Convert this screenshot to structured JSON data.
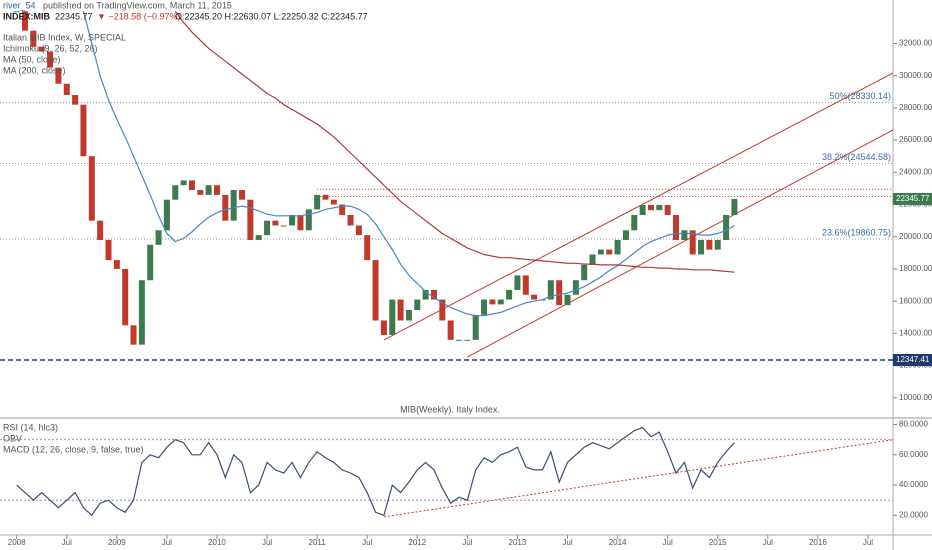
{
  "chart_data": [
    {
      "type": "candlestick",
      "header": {
        "publisher": "river_54",
        "published": "published on TradingView.com, March 11, 2015",
        "symbol": "INDEX:MIB",
        "quote": "22345.77",
        "change": "▼ −218.58 (−0.97%)",
        "ohlc": "O:22345.20 H:22630.07 L:22250.32 C:22345.77"
      },
      "indicators": [
        "Ichimoku (9, 26, 52, 26)"
      ],
      "caption": "MIB(Weekly). Italy Index.",
      "x": [
        "2008-01",
        "2008-02",
        "2008-03",
        "2008-04",
        "2008-05",
        "2008-06",
        "2008-07",
        "2008-08",
        "2008-09",
        "2008-10",
        "2008-11",
        "2008-12",
        "2009-01",
        "2009-02",
        "2009-03",
        "2009-04",
        "2009-05",
        "2009-06",
        "2009-07",
        "2009-08",
        "2009-09",
        "2009-10",
        "2009-11",
        "2009-12",
        "2010-01",
        "2010-02",
        "2010-03",
        "2010-04",
        "2010-05",
        "2010-06",
        "2010-07",
        "2010-08",
        "2010-09",
        "2010-10",
        "2010-11",
        "2010-12",
        "2011-01",
        "2011-02",
        "2011-03",
        "2011-04",
        "2011-05",
        "2011-06",
        "2011-07",
        "2011-08",
        "2011-09",
        "2011-10",
        "2011-11",
        "2011-12",
        "2012-01",
        "2012-02",
        "2012-03",
        "2012-04",
        "2012-05",
        "2012-06",
        "2012-07",
        "2012-08",
        "2012-09",
        "2012-10",
        "2012-11",
        "2012-12",
        "2013-01",
        "2013-02",
        "2013-03",
        "2013-04",
        "2013-05",
        "2013-06",
        "2013-07",
        "2013-08",
        "2013-09",
        "2013-10",
        "2013-11",
        "2013-12",
        "2014-01",
        "2014-02",
        "2014-03",
        "2014-04",
        "2014-05",
        "2014-06",
        "2014-07",
        "2014-08",
        "2014-09",
        "2014-10",
        "2014-11",
        "2014-12",
        "2015-01",
        "2015-02",
        "2015-03"
      ],
      "series": [
        {
          "name": "Italian MIB Index, W, SPECIAL",
          "color": "#3d7a4f",
          "down_color": "#c0392b",
          "values": [
            34000,
            32800,
            31800,
            31500,
            30500,
            29500,
            28800,
            28200,
            25000,
            21000,
            19800,
            18550,
            18000,
            14500,
            13300,
            17300,
            19500,
            20400,
            22300,
            23200,
            23500,
            22900,
            22600,
            23200,
            22600,
            21000,
            22900,
            22300,
            19800,
            20100,
            21000,
            20700,
            20700,
            21350,
            20400,
            21700,
            22600,
            22300,
            22000,
            21350,
            20700,
            20100,
            18550,
            14800,
            13900,
            16100,
            14800,
            15450,
            16100,
            16700,
            16100,
            14800,
            13600,
            13600,
            13600,
            15150,
            16100,
            15800,
            16100,
            16700,
            17600,
            16400,
            16100,
            16100,
            17300,
            15750,
            16400,
            17300,
            18250,
            18900,
            19200,
            18900,
            19800,
            20400,
            21350,
            21970,
            21650,
            21970,
            21350,
            19800,
            20400,
            18900,
            19800,
            19200,
            19800,
            21350,
            22345.77
          ]
        },
        {
          "name": "MA (50, close)",
          "color": "#4a86c5",
          "values": [
            null,
            null,
            null,
            null,
            null,
            null,
            null,
            null,
            34000,
            32000,
            30000,
            28500,
            27300,
            26200,
            25000,
            23800,
            22600,
            21300,
            20200,
            19700,
            19900,
            20300,
            20800,
            21200,
            21500,
            21700,
            21800,
            21900,
            21800,
            21600,
            21400,
            21300,
            21300,
            21300,
            21300,
            21400,
            21500,
            21700,
            21800,
            21900,
            21900,
            21700,
            21400,
            20800,
            20000,
            19200,
            18300,
            17600,
            17100,
            16600,
            16200,
            15900,
            15600,
            15400,
            15200,
            15100,
            15100,
            15200,
            15300,
            15500,
            15700,
            15900,
            16000,
            16100,
            16300,
            16400,
            16500,
            16700,
            16900,
            17200,
            17500,
            17900,
            18200,
            18600,
            19000,
            19400,
            19700,
            19900,
            20100,
            20200,
            20200,
            20200,
            20100,
            20100,
            20200,
            20400,
            20700
          ]
        },
        {
          "name": "MA (200, close)",
          "color": "#b03a3a",
          "values": [
            null,
            null,
            null,
            null,
            null,
            null,
            null,
            null,
            null,
            null,
            null,
            null,
            null,
            null,
            null,
            null,
            null,
            null,
            null,
            34000,
            33300,
            32700,
            32200,
            31700,
            31300,
            30900,
            30500,
            30100,
            29700,
            29300,
            28900,
            28600,
            28200,
            27900,
            27600,
            27300,
            27000,
            26600,
            26200,
            25700,
            25200,
            24700,
            24200,
            23700,
            23200,
            22700,
            22200,
            21800,
            21400,
            21000,
            20600,
            20200,
            19900,
            19600,
            19300,
            19100,
            18900,
            18800,
            18700,
            18700,
            18650,
            18600,
            18550,
            18500,
            18450,
            18400,
            18350,
            18350,
            18300,
            18300,
            18250,
            18250,
            18250,
            18200,
            18150,
            18100,
            18100,
            18050,
            18050,
            18000,
            18000,
            17950,
            17950,
            17950,
            17900,
            17850,
            17800
          ]
        }
      ],
      "fib_levels": [
        {
          "value": 28330.14,
          "label": "50%(28330.14)"
        },
        {
          "value": 24544.58,
          "label": "38.2%(24544.58)"
        },
        {
          "value": 19860.75,
          "label": "23.6%(19860.75)"
        }
      ],
      "support": {
        "value": 12347.41,
        "label": "12347.41"
      },
      "resistance": [
        22950,
        22500
      ],
      "trend_lines": [
        {
          "from": [
            "2011-09",
            13590
          ],
          "to": [
            "2016-10",
            30170
          ],
          "color": "#c0392b"
        },
        {
          "from": [
            "2012-07",
            12530
          ],
          "to": [
            "2016-10",
            26630
          ],
          "color": "#c0392b"
        }
      ],
      "xlim": [
        "2007-11",
        "2016-10"
      ],
      "ylim": [
        8000,
        34700
      ],
      "yticks": [
        {
          "value": 10000,
          "label": "10000.00"
        },
        {
          "value": 12000,
          "label": "12000.00"
        },
        {
          "value": 14000,
          "label": "14000.00"
        },
        {
          "value": 16000,
          "label": "16000.00"
        },
        {
          "value": 18000,
          "label": "18000.00"
        },
        {
          "value": 20000,
          "label": "20000.00"
        },
        {
          "value": 22000,
          "label": "22000.00"
        },
        {
          "value": 24000,
          "label": "24000.00"
        },
        {
          "value": 26000,
          "label": "26000.00"
        },
        {
          "value": 28000,
          "label": "28000.00"
        },
        {
          "value": 30000,
          "label": "30000.00"
        },
        {
          "value": 32000,
          "label": "32000.00"
        }
      ],
      "grid": false
    },
    {
      "type": "line",
      "indicators": [
        "OBV",
        "MACD (12, 26, close, 9, false, true)"
      ],
      "series": [
        {
          "name": "RSI (14, hlc3)",
          "color": "#3b4f73",
          "values": [
            40,
            35,
            30,
            35,
            30,
            25,
            30,
            35,
            25,
            20,
            28,
            30,
            25,
            22,
            30,
            55,
            60,
            58,
            65,
            70,
            68,
            60,
            60,
            68,
            60,
            45,
            60,
            55,
            35,
            40,
            55,
            50,
            48,
            55,
            45,
            55,
            62,
            58,
            55,
            50,
            48,
            45,
            35,
            22,
            20,
            40,
            35,
            42,
            50,
            55,
            50,
            38,
            28,
            32,
            30,
            50,
            58,
            55,
            60,
            62,
            65,
            52,
            50,
            50,
            62,
            42,
            55,
            60,
            65,
            68,
            66,
            64,
            68,
            72,
            76,
            78,
            72,
            75,
            62,
            48,
            55,
            38,
            50,
            45,
            55,
            62,
            68
          ]
        }
      ],
      "levels": [
        70,
        30
      ],
      "trend_lines": [
        {
          "from": [
            "2011-09",
            19
          ],
          "to": [
            "2016-10",
            70
          ],
          "color": "#c0392b"
        }
      ],
      "ylim": [
        7,
        83
      ],
      "yticks": [
        {
          "value": 20,
          "label": "20.0000"
        },
        {
          "value": 40,
          "label": "40.0000"
        },
        {
          "value": 60,
          "label": "60.0000"
        },
        {
          "value": 80,
          "label": "80.0000"
        }
      ],
      "xticks": [
        {
          "value": "2008-01",
          "label": "2008"
        },
        {
          "value": "2008-07",
          "label": "Jul"
        },
        {
          "value": "2009-01",
          "label": "2009"
        },
        {
          "value": "2009-07",
          "label": "Jul"
        },
        {
          "value": "2010-01",
          "label": "2010"
        },
        {
          "value": "2010-07",
          "label": "Jul"
        },
        {
          "value": "2011-01",
          "label": "2011"
        },
        {
          "value": "2011-07",
          "label": "Jul"
        },
        {
          "value": "2012-01",
          "label": "2012"
        },
        {
          "value": "2012-07",
          "label": "Jul"
        },
        {
          "value": "2013-01",
          "label": "2013"
        },
        {
          "value": "2013-07",
          "label": "Jul"
        },
        {
          "value": "2014-01",
          "label": "2014"
        },
        {
          "value": "2014-07",
          "label": "Jul"
        },
        {
          "value": "2015-01",
          "label": "2015"
        },
        {
          "value": "2015-07",
          "label": "Jul"
        },
        {
          "value": "2016-01",
          "label": "2016"
        },
        {
          "value": "2016-07",
          "label": "Jul"
        }
      ]
    }
  ]
}
